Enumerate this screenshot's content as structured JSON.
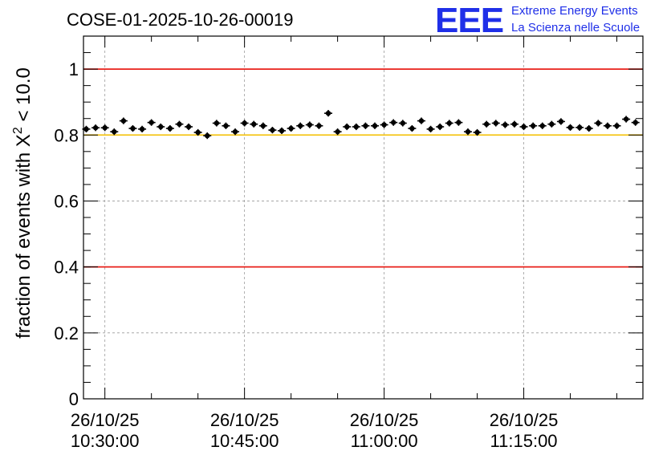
{
  "chart_data": {
    "type": "scatter",
    "title": "COSE-01-2025-10-26-00019",
    "ylabel_prefix": "fraction of events with ",
    "ylabel_chi": "X",
    "ylabel_exp": "2",
    "ylabel_suffix": " < 10.0",
    "xlabel": "",
    "ylim": [
      0,
      1.1
    ],
    "xlim_minutes": [
      27.7,
      87.8
    ],
    "y_ticks": [
      {
        "value": 0,
        "label": "0"
      },
      {
        "value": 0.2,
        "label": "0.2"
      },
      {
        "value": 0.4,
        "label": "0.4"
      },
      {
        "value": 0.6,
        "label": "0.6"
      },
      {
        "value": 0.8,
        "label": "0.8"
      },
      {
        "value": 1,
        "label": "1"
      }
    ],
    "x_ticks": [
      {
        "minutes": 30,
        "date": "26/10/25",
        "time": "10:30:00"
      },
      {
        "minutes": 45,
        "date": "26/10/25",
        "time": "10:45:00"
      },
      {
        "minutes": 60,
        "date": "26/10/25",
        "time": "11:00:00"
      },
      {
        "minutes": 75,
        "date": "26/10/25",
        "time": "11:15:00"
      }
    ],
    "reference_lines": [
      {
        "y": 1.0,
        "color": "#e8201a"
      },
      {
        "y": 0.8,
        "color": "#f5c518"
      },
      {
        "y": 0.4,
        "color": "#e8201a"
      }
    ],
    "x_minutes": [
      28.0,
      29.0,
      30.0,
      31.0,
      32.0,
      33.0,
      34.0,
      35.0,
      36.0,
      37.0,
      38.0,
      39.0,
      40.0,
      41.0,
      42.0,
      43.0,
      44.0,
      45.0,
      46.0,
      47.0,
      48.0,
      49.0,
      50.0,
      51.0,
      52.0,
      53.0,
      54.0,
      55.0,
      56.0,
      57.0,
      58.0,
      59.0,
      60.0,
      61.0,
      62.0,
      63.0,
      64.0,
      65.0,
      66.0,
      67.0,
      68.0,
      69.0,
      70.0,
      71.0,
      72.0,
      73.0,
      74.0,
      75.0,
      76.0,
      77.0,
      78.0,
      79.0,
      80.0,
      81.0,
      82.0,
      83.0,
      84.0,
      85.0,
      86.0,
      87.0
    ],
    "values": [
      0.818,
      0.822,
      0.822,
      0.81,
      0.843,
      0.82,
      0.818,
      0.838,
      0.825,
      0.82,
      0.833,
      0.825,
      0.808,
      0.798,
      0.836,
      0.828,
      0.81,
      0.836,
      0.833,
      0.828,
      0.815,
      0.813,
      0.82,
      0.828,
      0.831,
      0.828,
      0.866,
      0.81,
      0.825,
      0.825,
      0.828,
      0.828,
      0.831,
      0.838,
      0.836,
      0.82,
      0.843,
      0.818,
      0.825,
      0.836,
      0.838,
      0.81,
      0.808,
      0.833,
      0.836,
      0.831,
      0.833,
      0.825,
      0.828,
      0.828,
      0.833,
      0.841,
      0.823,
      0.823,
      0.82,
      0.836,
      0.828,
      0.828,
      0.848,
      0.838
    ],
    "errors": [
      0.01,
      0.01,
      0.01,
      0.01,
      0.01,
      0.01,
      0.01,
      0.01,
      0.01,
      0.01,
      0.01,
      0.01,
      0.01,
      0.01,
      0.01,
      0.01,
      0.01,
      0.01,
      0.01,
      0.01,
      0.01,
      0.01,
      0.01,
      0.01,
      0.01,
      0.01,
      0.01,
      0.01,
      0.01,
      0.01,
      0.01,
      0.01,
      0.01,
      0.01,
      0.01,
      0.01,
      0.01,
      0.01,
      0.01,
      0.01,
      0.01,
      0.01,
      0.01,
      0.01,
      0.01,
      0.01,
      0.01,
      0.01,
      0.01,
      0.01,
      0.01,
      0.01,
      0.01,
      0.01,
      0.01,
      0.01,
      0.01,
      0.01,
      0.01,
      0.01
    ],
    "grid": true
  },
  "logo": {
    "mark": "EEE",
    "line1": "Extreme Energy Events",
    "line2": "La Scienza nelle Scuole"
  },
  "colors": {
    "logo": "#1f2fe8",
    "points": "#000000",
    "grid": "#9a9a9a"
  }
}
